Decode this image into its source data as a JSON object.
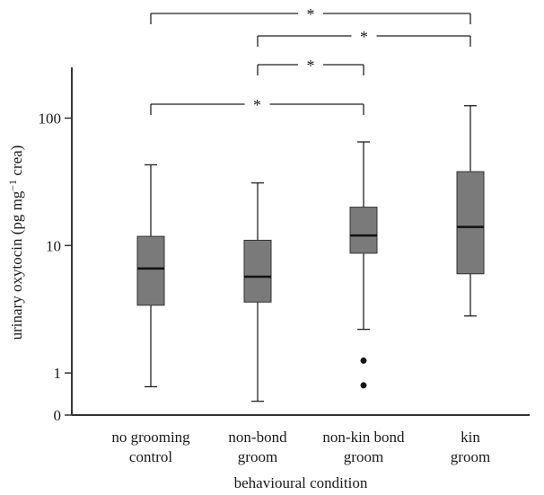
{
  "chart_data": {
    "type": "box",
    "xlabel": "behavioural condition",
    "ylabel": "urinary oxytocin (pg mg",
    "ylabel_sup": "−1",
    "ylabel_end": " crea)",
    "yscale": "log",
    "ylim": [
      0.55,
      250
    ],
    "yticks": [
      {
        "value": 1,
        "label": "1"
      },
      {
        "value": 10,
        "label": "10"
      },
      {
        "value": 100,
        "label": "100"
      }
    ],
    "yzero_label": "0",
    "categories": [
      {
        "line1": "no grooming",
        "line2": "control"
      },
      {
        "line1": "non-bond",
        "line2": "groom"
      },
      {
        "line1": "non-kin bond",
        "line2": "groom"
      },
      {
        "line1": "kin",
        "line2": "groom"
      }
    ],
    "boxes": [
      {
        "whisker_low": 0.78,
        "q1": 3.4,
        "median": 6.6,
        "q3": 11.8,
        "whisker_high": 43,
        "outliers": []
      },
      {
        "whisker_low": 0.6,
        "q1": 3.6,
        "median": 5.7,
        "q3": 11,
        "whisker_high": 31,
        "outliers": []
      },
      {
        "whisker_low": 2.2,
        "q1": 8.7,
        "median": 12,
        "q3": 20,
        "whisker_high": 65,
        "outliers": [
          1.25,
          0.8
        ]
      },
      {
        "whisker_low": 2.8,
        "q1": 6,
        "median": 14,
        "q3": 38,
        "whisker_high": 125,
        "outliers": []
      }
    ],
    "box_color": "#7a7a7a",
    "significance": [
      {
        "from": 0,
        "to": 3,
        "label": "*"
      },
      {
        "from": 1,
        "to": 3,
        "label": "*"
      },
      {
        "from": 1,
        "to": 2,
        "label": "*"
      },
      {
        "from": 0,
        "to": 2,
        "label": "*"
      }
    ]
  }
}
